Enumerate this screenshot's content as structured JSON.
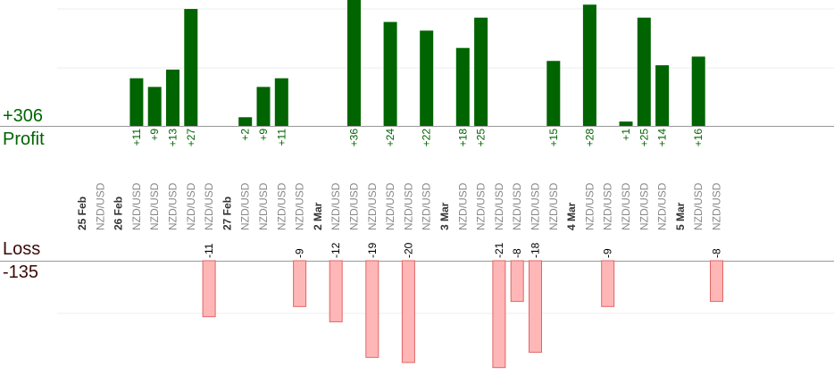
{
  "summary": {
    "profit_total": "+306",
    "profit_label": "Profit",
    "loss_label": "Loss",
    "loss_total": "-135"
  },
  "colors": {
    "profit_bar": "#006400",
    "profit_text": "#006400",
    "loss_bar": "#ffb6b6",
    "loss_border": "#e06666",
    "date_text": "#333333",
    "pair_text": "#888888",
    "grid": "#eeeeee",
    "axis": "#999999"
  },
  "chart_data": {
    "type": "bar",
    "profit_scale_max": 27,
    "loss_scale_max": 20,
    "columns": [
      {
        "kind": "date",
        "label": "25 Feb"
      },
      {
        "kind": "trade",
        "pair": "NZD/USD",
        "value": null
      },
      {
        "kind": "date",
        "label": "26 Feb"
      },
      {
        "kind": "trade",
        "pair": "NZD/USD",
        "value": 11
      },
      {
        "kind": "trade",
        "pair": "NZD/USD",
        "value": 9
      },
      {
        "kind": "trade",
        "pair": "NZD/USD",
        "value": 13
      },
      {
        "kind": "trade",
        "pair": "NZD/USD",
        "value": 27
      },
      {
        "kind": "trade",
        "pair": "NZD/USD",
        "value": -11
      },
      {
        "kind": "date",
        "label": "27 Feb"
      },
      {
        "kind": "trade",
        "pair": "NZD/USD",
        "value": 2
      },
      {
        "kind": "trade",
        "pair": "NZD/USD",
        "value": 9
      },
      {
        "kind": "trade",
        "pair": "NZD/USD",
        "value": 11
      },
      {
        "kind": "trade",
        "pair": "NZD/USD",
        "value": -9
      },
      {
        "kind": "date",
        "label": "2 Mar"
      },
      {
        "kind": "trade",
        "pair": "NZD/USD",
        "value": -12
      },
      {
        "kind": "trade",
        "pair": "NZD/USD",
        "value": 36
      },
      {
        "kind": "trade",
        "pair": "NZD/USD",
        "value": -19
      },
      {
        "kind": "trade",
        "pair": "NZD/USD",
        "value": 24
      },
      {
        "kind": "trade",
        "pair": "NZD/USD",
        "value": -20
      },
      {
        "kind": "trade",
        "pair": "NZD/USD",
        "value": 22
      },
      {
        "kind": "date",
        "label": "3 Mar"
      },
      {
        "kind": "trade",
        "pair": "NZD/USD",
        "value": 18
      },
      {
        "kind": "trade",
        "pair": "NZD/USD",
        "value": 25
      },
      {
        "kind": "trade",
        "pair": "NZD/USD",
        "value": -21
      },
      {
        "kind": "trade",
        "pair": "NZD/USD",
        "value": -8
      },
      {
        "kind": "trade",
        "pair": "NZD/USD",
        "value": -18
      },
      {
        "kind": "trade",
        "pair": "NZD/USD",
        "value": 15
      },
      {
        "kind": "date",
        "label": "4 Mar"
      },
      {
        "kind": "trade",
        "pair": "NZD/USD",
        "value": 28
      },
      {
        "kind": "trade",
        "pair": "NZD/USD",
        "value": -9
      },
      {
        "kind": "trade",
        "pair": "NZD/USD",
        "value": 1
      },
      {
        "kind": "trade",
        "pair": "NZD/USD",
        "value": 25
      },
      {
        "kind": "trade",
        "pair": "NZD/USD",
        "value": 14
      },
      {
        "kind": "date",
        "label": "5 Mar"
      },
      {
        "kind": "trade",
        "pair": "NZD/USD",
        "value": 16
      },
      {
        "kind": "trade",
        "pair": "NZD/USD",
        "value": -8
      }
    ]
  }
}
